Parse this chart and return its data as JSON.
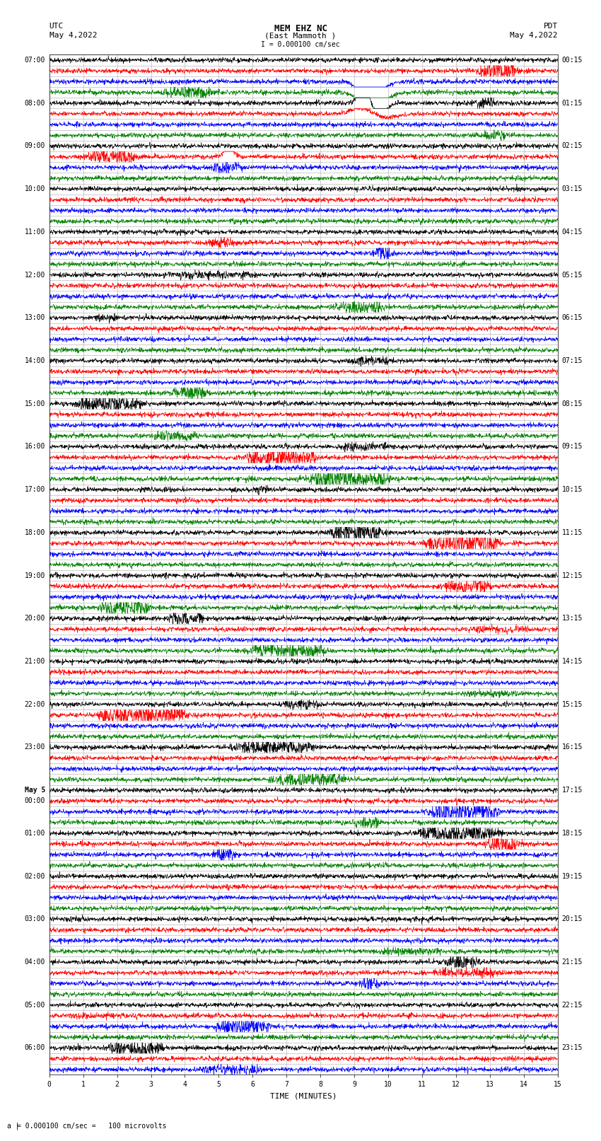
{
  "title_line1": "MEM EHZ NC",
  "title_line2": "(East Mammoth )",
  "scale_label": "I = 0.000100 cm/sec",
  "left_label_top": "UTC",
  "left_label_date": "May 4,2022",
  "right_label_top": "PDT",
  "right_label_date": "May 4,2022",
  "xlabel": "TIME (MINUTES)",
  "bottom_note": "= 0.000100 cm/sec =   100 microvolts",
  "bottom_note_prefix": "a |",
  "xlim": [
    0,
    15
  ],
  "xticks": [
    0,
    1,
    2,
    3,
    4,
    5,
    6,
    7,
    8,
    9,
    10,
    11,
    12,
    13,
    14,
    15
  ],
  "colors": [
    "black",
    "red",
    "blue",
    "green"
  ],
  "utc_times": [
    "07:00",
    "",
    "",
    "",
    "08:00",
    "",
    "",
    "",
    "09:00",
    "",
    "",
    "",
    "10:00",
    "",
    "",
    "",
    "11:00",
    "",
    "",
    "",
    "12:00",
    "",
    "",
    "",
    "13:00",
    "",
    "",
    "",
    "14:00",
    "",
    "",
    "",
    "15:00",
    "",
    "",
    "",
    "16:00",
    "",
    "",
    "",
    "17:00",
    "",
    "",
    "",
    "18:00",
    "",
    "",
    "",
    "19:00",
    "",
    "",
    "",
    "20:00",
    "",
    "",
    "",
    "21:00",
    "",
    "",
    "",
    "22:00",
    "",
    "",
    "",
    "23:00",
    "",
    "",
    "",
    "May 5",
    "00:00",
    "",
    "",
    "01:00",
    "",
    "",
    "",
    "02:00",
    "",
    "",
    "",
    "03:00",
    "",
    "",
    "",
    "04:00",
    "",
    "",
    "",
    "05:00",
    "",
    "",
    "",
    "06:00",
    "",
    ""
  ],
  "pdt_times": [
    "00:15",
    "",
    "",
    "",
    "01:15",
    "",
    "",
    "",
    "02:15",
    "",
    "",
    "",
    "03:15",
    "",
    "",
    "",
    "04:15",
    "",
    "",
    "",
    "05:15",
    "",
    "",
    "",
    "06:15",
    "",
    "",
    "",
    "07:15",
    "",
    "",
    "",
    "08:15",
    "",
    "",
    "",
    "09:15",
    "",
    "",
    "",
    "10:15",
    "",
    "",
    "",
    "11:15",
    "",
    "",
    "",
    "12:15",
    "",
    "",
    "",
    "13:15",
    "",
    "",
    "",
    "14:15",
    "",
    "",
    "",
    "15:15",
    "",
    "",
    "",
    "16:15",
    "",
    "",
    "",
    "17:15",
    "",
    "",
    "",
    "18:15",
    "",
    "",
    "",
    "19:15",
    "",
    "",
    "",
    "20:15",
    "",
    "",
    "",
    "21:15",
    "",
    "",
    "",
    "22:15",
    "",
    "",
    "",
    "23:15",
    "",
    ""
  ],
  "num_rows": 95,
  "seed": 42,
  "noise_amp": 0.25,
  "amplitude_scale": 0.42,
  "num_samples": 1800,
  "bg_color": "#ffffff",
  "grid_color": "#aaaaaa",
  "label_fontsize": 7,
  "title_fontsize": 9,
  "linewidth": 0.5
}
